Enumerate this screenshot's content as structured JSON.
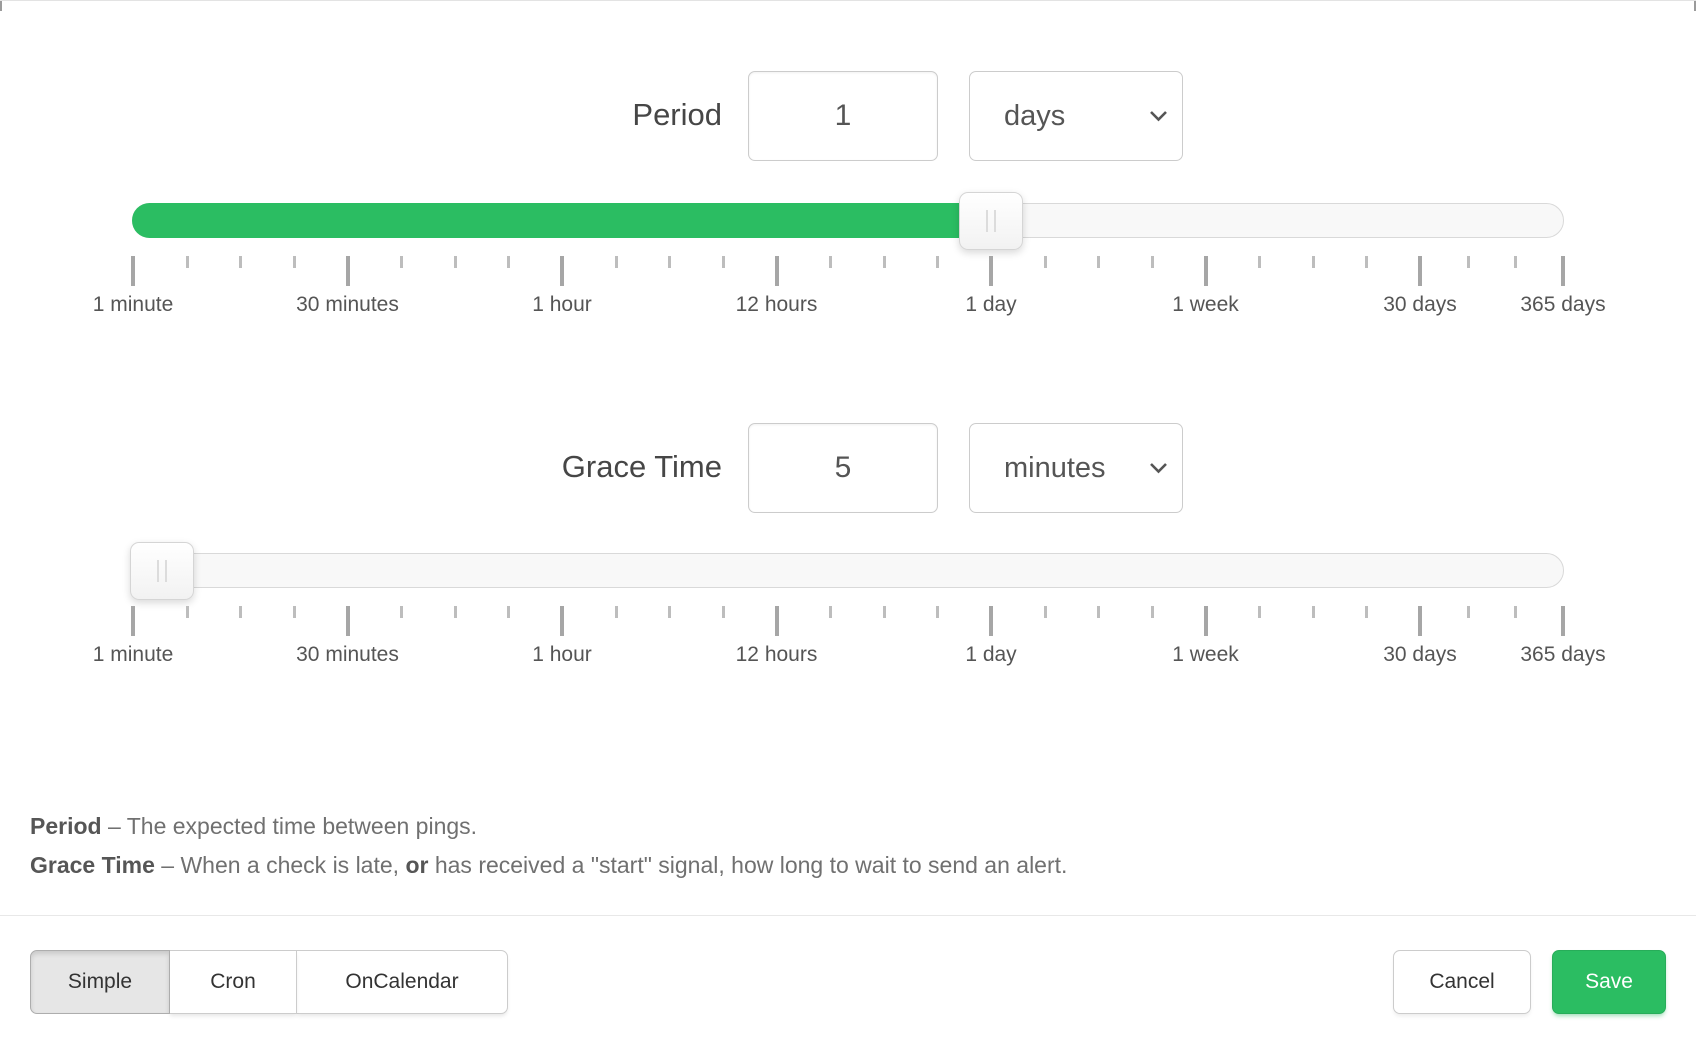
{
  "period_row": {
    "label": "Period",
    "value": "1",
    "unit": "days"
  },
  "grace_row": {
    "label": "Grace Time",
    "value": "5",
    "unit": "minutes"
  },
  "scale_labels": [
    "1 minute",
    "30 minutes",
    "1 hour",
    "12 hours",
    "1 day",
    "1 week",
    "30 days",
    "365 days"
  ],
  "period_slider": {
    "fill_percent": 60
  },
  "grace_slider": {
    "fill_percent": 2
  },
  "help": {
    "period_term": "Period",
    "period_desc": " – The expected time between pings.",
    "grace_term": "Grace Time",
    "grace_mid": " – When a check is late, ",
    "grace_or": "or",
    "grace_end": " has received a \"start\" signal, how long to wait to send an alert."
  },
  "footer": {
    "modes": [
      "Simple",
      "Cron",
      "OnCalendar"
    ],
    "active_mode": "Simple",
    "cancel_label": "Cancel",
    "save_label": "Save"
  },
  "colors": {
    "accent_green": "#2bbd62",
    "accent_green_border": "#27ad59"
  }
}
